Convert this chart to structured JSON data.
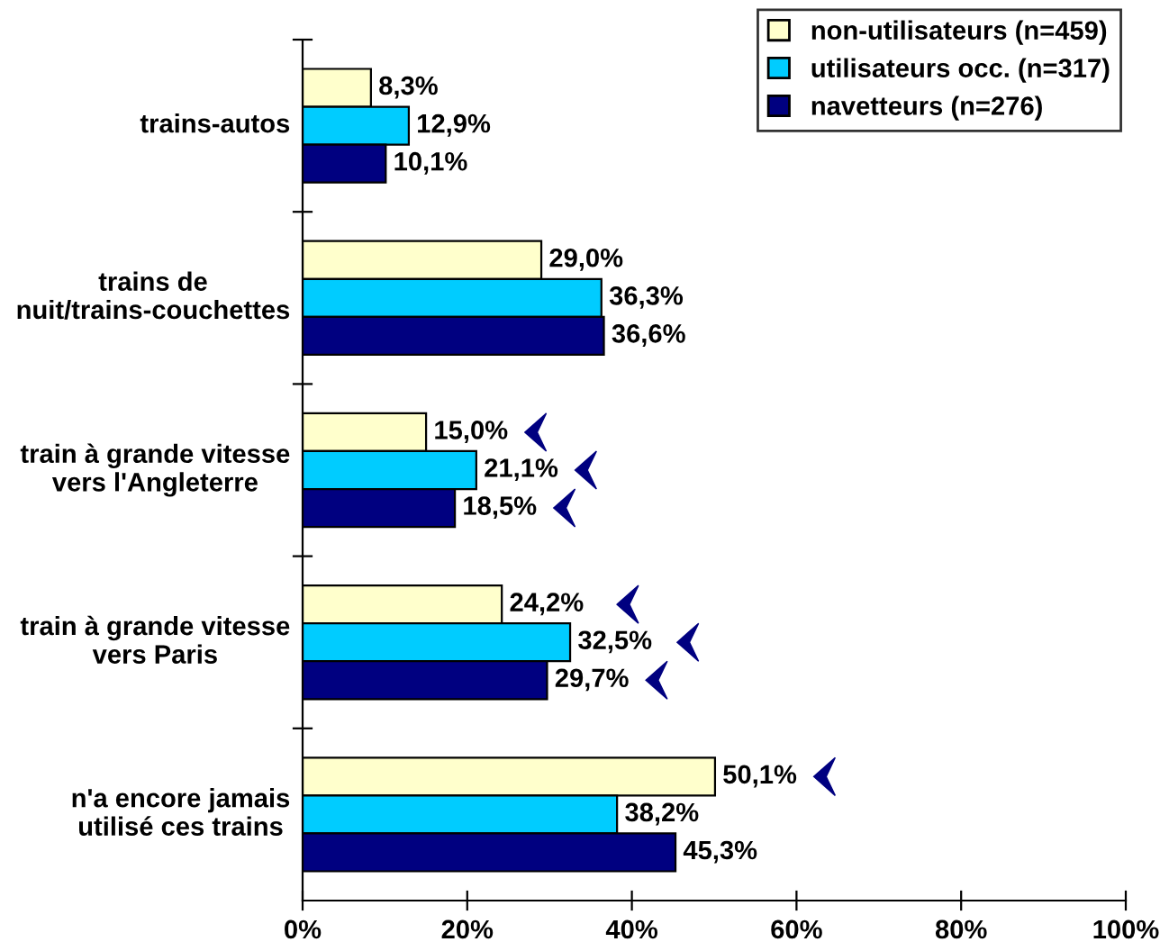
{
  "chart_data": {
    "type": "bar",
    "orientation": "horizontal",
    "categories": [
      "trains-autos",
      "trains de nuit/trains-couchettes",
      "train à grande vitesse vers l'Angleterre",
      "train à grande vitesse vers Paris",
      "n'a encore jamais utilisé ces trains"
    ],
    "series": [
      {
        "name": "non-utilisateurs (n=459)",
        "color": "#ffffcc",
        "values": [
          8.3,
          29.0,
          15.0,
          24.2,
          50.1
        ],
        "value_labels": [
          "8,3%",
          "29,0%",
          "15,0%",
          "24,2%",
          "50,1%"
        ]
      },
      {
        "name": "utilisateurs occ. (n=317)",
        "color": "#00ccff",
        "values": [
          12.9,
          36.3,
          21.1,
          32.5,
          38.2
        ],
        "value_labels": [
          "12,9%",
          "36,3%",
          "21,1%",
          "32,5%",
          "38,2%"
        ]
      },
      {
        "name": "navetteurs (n=276)",
        "color": "#000080",
        "values": [
          10.1,
          36.6,
          18.5,
          29.7,
          45.3
        ],
        "value_labels": [
          "10,1%",
          "36,6%",
          "18,5%",
          "29,7%",
          "45,3%"
        ]
      }
    ],
    "xlim": [
      0,
      100
    ],
    "xticks": [
      {
        "value": 0,
        "label": "0%"
      },
      {
        "value": 20,
        "label": "20%"
      },
      {
        "value": 40,
        "label": "40%"
      },
      {
        "value": 60,
        "label": "60%"
      },
      {
        "value": 80,
        "label": "80%"
      },
      {
        "value": 100,
        "label": "100%"
      }
    ],
    "grid": false,
    "legend": "top right"
  }
}
